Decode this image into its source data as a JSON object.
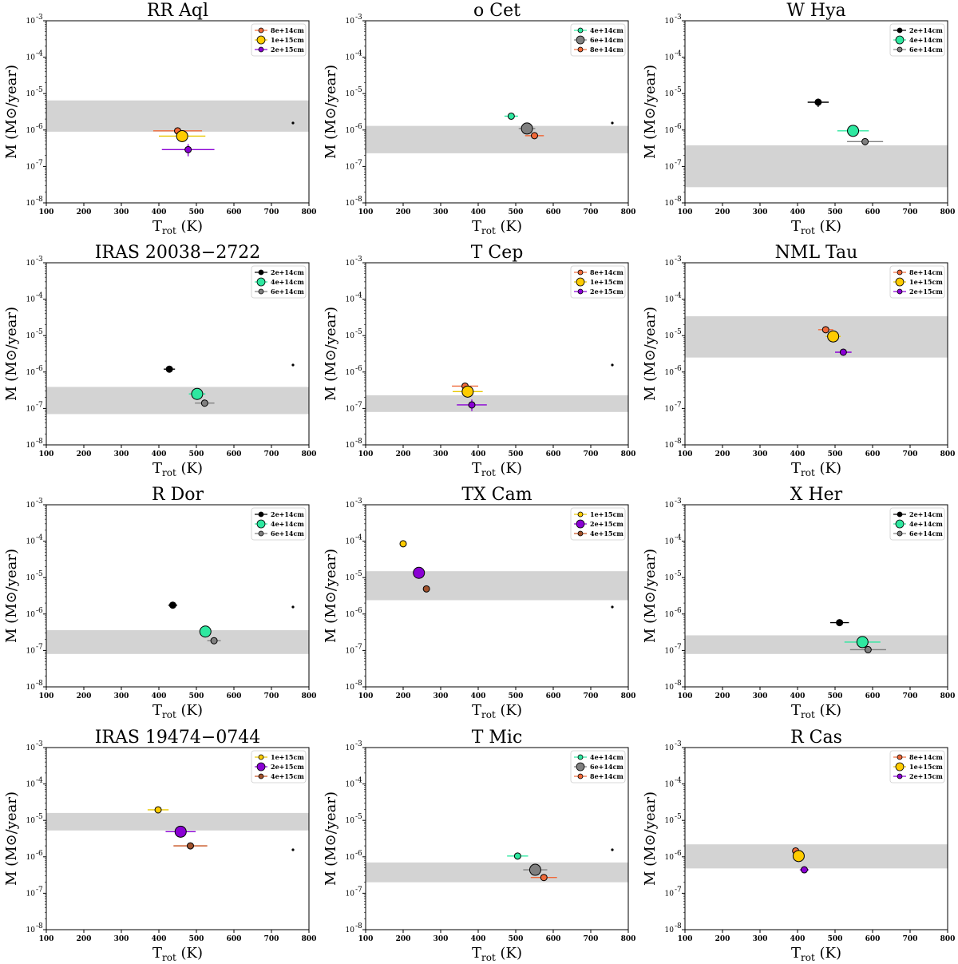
{
  "styles": {
    "band_color": "#d3d3d3",
    "series_colors": {
      "2e+14cm": "#000000",
      "4e+14cm": "#2ee8a0",
      "6e+14cm": "#808080",
      "8e+14cm": "#f06a3a",
      "1e+15cm": "#ffcc00",
      "2e+15cm": "#8a00d4",
      "4e+15cm": "#a0522d"
    },
    "errorbar_colors": {
      "2e+14cm": "#000000",
      "4e+14cm": "#2ee8a0",
      "6e+14cm": "#808080",
      "8e+14cm": "#f06a3a",
      "1e+15cm": "#e8c800",
      "2e+15cm": "#8a00d4",
      "4e+15cm": "#c8501e"
    }
  },
  "chart_data": [
    {
      "type": "scatter",
      "title": "RR Aql",
      "xlabel_main": "T",
      "xlabel_sub": "rot",
      "xlabel_unit": " (K)",
      "ylabel_pre": "M",
      "ylabel_post": " (M",
      "ylabel_sym": "⊙",
      "ylabel_end": "/year)",
      "xlim": [
        100,
        800
      ],
      "ylim": [
        1e-08,
        0.001
      ],
      "log_y": true,
      "xticks": [
        "100",
        "200",
        "300",
        "400",
        "500",
        "600",
        "700",
        "800"
      ],
      "yticks": [
        "10",
        "10",
        "10",
        "10",
        "10",
        "10"
      ],
      "ytick_exps": [
        "-8",
        "-7",
        "-6",
        "-5",
        "-4",
        "-3"
      ],
      "band": [
        9e-07,
        6.5e-06
      ],
      "legend_position": "top-right",
      "series": [
        {
          "name": "8e+14cm",
          "x": 450,
          "y": 9.5e-07,
          "xerr": [
            65,
            65
          ],
          "yerr": [
            0,
            0
          ],
          "size": 4
        },
        {
          "name": "1e+15cm",
          "x": 462,
          "y": 6.8e-07,
          "xerr": [
            62,
            62
          ],
          "yerr": [
            0,
            0
          ],
          "size": 7
        },
        {
          "name": "2e+15cm",
          "x": 478,
          "y": 2.9e-07,
          "xerr": [
            70,
            70
          ],
          "yerr": [
            1e-07,
            1.2e-07
          ],
          "size": 4
        }
      ]
    },
    {
      "type": "scatter",
      "title": "o Cet",
      "xlabel_main": "T",
      "xlabel_sub": "rot",
      "xlabel_unit": " (K)",
      "ylabel_pre": "M",
      "ylabel_post": " (M",
      "ylabel_sym": "⊙",
      "ylabel_end": "/year)",
      "xlim": [
        100,
        800
      ],
      "ylim": [
        1e-08,
        0.001
      ],
      "log_y": true,
      "xticks": [
        "100",
        "200",
        "300",
        "400",
        "500",
        "600",
        "700",
        "800"
      ],
      "yticks": [
        "10",
        "10",
        "10",
        "10",
        "10",
        "10"
      ],
      "ytick_exps": [
        "-8",
        "-7",
        "-6",
        "-5",
        "-4",
        "-3"
      ],
      "band": [
        2.3e-07,
        1.3e-06
      ],
      "legend_position": "top-right",
      "series": [
        {
          "name": "4e+14cm",
          "x": 488,
          "y": 2.4e-06,
          "xerr": [
            18,
            18
          ],
          "yerr": [
            0,
            0
          ],
          "size": 4
        },
        {
          "name": "6e+14cm",
          "x": 530,
          "y": 1.1e-06,
          "xerr": [
            22,
            22
          ],
          "yerr": [
            0,
            0
          ],
          "size": 7
        },
        {
          "name": "8e+14cm",
          "x": 550,
          "y": 7e-07,
          "xerr": [
            25,
            25
          ],
          "yerr": [
            0,
            0
          ],
          "size": 4
        }
      ]
    },
    {
      "type": "scatter",
      "title": "W Hya",
      "xlabel_main": "T",
      "xlabel_sub": "rot",
      "xlabel_unit": " (K)",
      "ylabel_pre": "M",
      "ylabel_post": " (M",
      "ylabel_sym": "⊙",
      "ylabel_end": "/year)",
      "xlim": [
        100,
        800
      ],
      "ylim": [
        1e-08,
        0.001
      ],
      "log_y": true,
      "xticks": [
        "100",
        "200",
        "300",
        "400",
        "500",
        "600",
        "700",
        "800"
      ],
      "yticks": [
        "10",
        "10",
        "10",
        "10",
        "10",
        "10"
      ],
      "ytick_exps": [
        "-8",
        "-7",
        "-6",
        "-5",
        "-4",
        "-3"
      ],
      "band": [
        2.7e-08,
        3.8e-07
      ],
      "legend_position": "top-right",
      "series": [
        {
          "name": "2e+14cm",
          "x": 455,
          "y": 5.8e-06,
          "xerr": [
            28,
            28
          ],
          "yerr": [
            1.5e-06,
            1.5e-06
          ],
          "size": 4
        },
        {
          "name": "4e+14cm",
          "x": 548,
          "y": 9.5e-07,
          "xerr": [
            42,
            42
          ],
          "yerr": [
            0,
            0
          ],
          "size": 7
        },
        {
          "name": "6e+14cm",
          "x": 580,
          "y": 4.8e-07,
          "xerr": [
            48,
            48
          ],
          "yerr": [
            1e-07,
            1e-07
          ],
          "size": 4
        }
      ]
    },
    {
      "type": "scatter",
      "title": "IRAS 20038−2722",
      "xlabel_main": "T",
      "xlabel_sub": "rot",
      "xlabel_unit": " (K)",
      "ylabel_pre": "M",
      "ylabel_post": " (M",
      "ylabel_sym": "⊙",
      "ylabel_end": "/year)",
      "xlim": [
        100,
        800
      ],
      "ylim": [
        1e-08,
        0.001
      ],
      "log_y": true,
      "xticks": [
        "100",
        "200",
        "300",
        "400",
        "500",
        "600",
        "700",
        "800"
      ],
      "yticks": [
        "10",
        "10",
        "10",
        "10",
        "10",
        "10"
      ],
      "ytick_exps": [
        "-8",
        "-7",
        "-6",
        "-5",
        "-4",
        "-3"
      ],
      "band": [
        7e-08,
        3.9e-07
      ],
      "legend_position": "top-right",
      "series": [
        {
          "name": "2e+14cm",
          "x": 428,
          "y": 1.2e-06,
          "xerr": [
            15,
            15
          ],
          "yerr": [
            0,
            0
          ],
          "size": 4
        },
        {
          "name": "4e+14cm",
          "x": 502,
          "y": 2.5e-07,
          "xerr": [
            22,
            22
          ],
          "yerr": [
            0,
            0
          ],
          "size": 7
        },
        {
          "name": "6e+14cm",
          "x": 522,
          "y": 1.4e-07,
          "xerr": [
            26,
            26
          ],
          "yerr": [
            0,
            0
          ],
          "size": 4
        }
      ]
    },
    {
      "type": "scatter",
      "title": "T Cep",
      "xlabel_main": "T",
      "xlabel_sub": "rot",
      "xlabel_unit": " (K)",
      "ylabel_pre": "M",
      "ylabel_post": " (M",
      "ylabel_sym": "⊙",
      "ylabel_end": "/year)",
      "xlim": [
        100,
        800
      ],
      "ylim": [
        1e-08,
        0.001
      ],
      "log_y": true,
      "xticks": [
        "100",
        "200",
        "300",
        "400",
        "500",
        "600",
        "700",
        "800"
      ],
      "yticks": [
        "10",
        "10",
        "10",
        "10",
        "10",
        "10"
      ],
      "ytick_exps": [
        "-8",
        "-7",
        "-6",
        "-5",
        "-4",
        "-3"
      ],
      "band": [
        8e-08,
        2.3e-07
      ],
      "legend_position": "top-right",
      "series": [
        {
          "name": "8e+14cm",
          "x": 365,
          "y": 4.1e-07,
          "xerr": [
            35,
            35
          ],
          "yerr": [
            1e-07,
            1e-07
          ],
          "size": 4
        },
        {
          "name": "1e+15cm",
          "x": 372,
          "y": 2.9e-07,
          "xerr": [
            40,
            40
          ],
          "yerr": [
            0,
            0
          ],
          "size": 7
        },
        {
          "name": "2e+15cm",
          "x": 383,
          "y": 1.25e-07,
          "xerr": [
            40,
            40
          ],
          "yerr": [
            4e-08,
            5e-08
          ],
          "size": 4
        }
      ]
    },
    {
      "type": "scatter",
      "title": "NML Tau",
      "xlabel_main": "T",
      "xlabel_sub": "rot",
      "xlabel_unit": " (K)",
      "ylabel_pre": "M",
      "ylabel_post": " (M",
      "ylabel_sym": "⊙",
      "ylabel_end": "/year)",
      "xlim": [
        100,
        800
      ],
      "ylim": [
        1e-08,
        0.001
      ],
      "log_y": true,
      "xticks": [
        "100",
        "200",
        "300",
        "400",
        "500",
        "600",
        "700",
        "800"
      ],
      "yticks": [
        "10",
        "10",
        "10",
        "10",
        "10",
        "10"
      ],
      "ytick_exps": [
        "-8",
        "-7",
        "-6",
        "-5",
        "-4",
        "-3"
      ],
      "band": [
        2.5e-06,
        3.4e-05
      ],
      "legend_position": "top-right",
      "series": [
        {
          "name": "8e+14cm",
          "x": 475,
          "y": 1.45e-05,
          "xerr": [
            20,
            20
          ],
          "yerr": [
            0,
            0
          ],
          "size": 4
        },
        {
          "name": "1e+15cm",
          "x": 495,
          "y": 9.5e-06,
          "xerr": [
            20,
            20
          ],
          "yerr": [
            0,
            0
          ],
          "size": 7
        },
        {
          "name": "2e+15cm",
          "x": 522,
          "y": 3.5e-06,
          "xerr": [
            22,
            22
          ],
          "yerr": [
            0,
            0
          ],
          "size": 4
        }
      ]
    },
    {
      "type": "scatter",
      "title": "R Dor",
      "xlabel_main": "T",
      "xlabel_sub": "rot",
      "xlabel_unit": " (K)",
      "ylabel_pre": "M",
      "ylabel_post": " (M",
      "ylabel_sym": "⊙",
      "ylabel_end": "/year)",
      "xlim": [
        100,
        800
      ],
      "ylim": [
        1e-08,
        0.001
      ],
      "log_y": true,
      "xticks": [
        "100",
        "200",
        "300",
        "400",
        "500",
        "600",
        "700",
        "800"
      ],
      "yticks": [
        "10",
        "10",
        "10",
        "10",
        "10",
        "10"
      ],
      "ytick_exps": [
        "-8",
        "-7",
        "-6",
        "-5",
        "-4",
        "-3"
      ],
      "band": [
        8e-08,
        3.6e-07
      ],
      "legend_position": "top-right",
      "series": [
        {
          "name": "2e+14cm",
          "x": 437,
          "y": 1.75e-06,
          "xerr": [
            12,
            12
          ],
          "yerr": [
            0,
            0
          ],
          "size": 4
        },
        {
          "name": "4e+14cm",
          "x": 524,
          "y": 3.3e-07,
          "xerr": [
            16,
            16
          ],
          "yerr": [
            0,
            0
          ],
          "size": 7
        },
        {
          "name": "6e+14cm",
          "x": 547,
          "y": 1.85e-07,
          "xerr": [
            18,
            18
          ],
          "yerr": [
            0,
            0
          ],
          "size": 4
        }
      ]
    },
    {
      "type": "scatter",
      "title": "TX Cam",
      "xlabel_main": "T",
      "xlabel_sub": "rot",
      "xlabel_unit": " (K)",
      "ylabel_pre": "M",
      "ylabel_post": " (M",
      "ylabel_sym": "⊙",
      "ylabel_end": "/year)",
      "xlim": [
        100,
        800
      ],
      "ylim": [
        1e-08,
        0.001
      ],
      "log_y": true,
      "xticks": [
        "100",
        "200",
        "300",
        "400",
        "500",
        "600",
        "700",
        "800"
      ],
      "yticks": [
        "10",
        "10",
        "10",
        "10",
        "10",
        "10"
      ],
      "ytick_exps": [
        "-8",
        "-7",
        "-6",
        "-5",
        "-4",
        "-3"
      ],
      "band": [
        2.4e-06,
        1.5e-05
      ],
      "legend_position": "top-right",
      "series": [
        {
          "name": "1e+15cm",
          "x": 200,
          "y": 8.5e-05,
          "xerr": [
            0,
            0
          ],
          "yerr": [
            0,
            0
          ],
          "size": 4
        },
        {
          "name": "2e+15cm",
          "x": 242,
          "y": 1.35e-05,
          "xerr": [
            0,
            0
          ],
          "yerr": [
            0,
            0
          ],
          "size": 7
        },
        {
          "name": "4e+15cm",
          "x": 262,
          "y": 4.9e-06,
          "xerr": [
            8,
            8
          ],
          "yerr": [
            0,
            0
          ],
          "size": 4
        }
      ]
    },
    {
      "type": "scatter",
      "title": "X Her",
      "xlabel_main": "T",
      "xlabel_sub": "rot",
      "xlabel_unit": " (K)",
      "ylabel_pre": "M",
      "ylabel_post": " (M",
      "ylabel_sym": "⊙",
      "ylabel_end": "/year)",
      "xlim": [
        100,
        800
      ],
      "ylim": [
        1e-08,
        0.001
      ],
      "log_y": true,
      "xticks": [
        "100",
        "200",
        "300",
        "400",
        "500",
        "600",
        "700",
        "800"
      ],
      "yticks": [
        "10",
        "10",
        "10",
        "10",
        "10",
        "10"
      ],
      "ytick_exps": [
        "-8",
        "-7",
        "-6",
        "-5",
        "-4",
        "-3"
      ],
      "band": [
        8e-08,
        2.6e-07
      ],
      "legend_position": "top-right",
      "series": [
        {
          "name": "2e+14cm",
          "x": 512,
          "y": 5.8e-07,
          "xerr": [
            25,
            25
          ],
          "yerr": [
            0,
            0
          ],
          "size": 4
        },
        {
          "name": "4e+14cm",
          "x": 573,
          "y": 1.7e-07,
          "xerr": [
            48,
            48
          ],
          "yerr": [
            0,
            0
          ],
          "size": 7
        },
        {
          "name": "6e+14cm",
          "x": 588,
          "y": 1.05e-07,
          "xerr": [
            48,
            48
          ],
          "yerr": [
            0,
            0
          ],
          "size": 4
        }
      ]
    },
    {
      "type": "scatter",
      "title": "IRAS 19474−0744",
      "xlabel_main": "T",
      "xlabel_sub": "rot",
      "xlabel_unit": " (K)",
      "ylabel_pre": "M",
      "ylabel_post": " (M",
      "ylabel_sym": "⊙",
      "ylabel_end": "/year)",
      "xlim": [
        100,
        800
      ],
      "ylim": [
        1e-08,
        0.001
      ],
      "log_y": true,
      "xticks": [
        "100",
        "200",
        "300",
        "400",
        "500",
        "600",
        "700",
        "800"
      ],
      "yticks": [
        "10",
        "10",
        "10",
        "10",
        "10",
        "10"
      ],
      "ytick_exps": [
        "-8",
        "-7",
        "-6",
        "-5",
        "-4",
        "-3"
      ],
      "band": [
        5.3e-06,
        1.6e-05
      ],
      "legend_position": "top-right",
      "series": [
        {
          "name": "1e+15cm",
          "x": 398,
          "y": 1.95e-05,
          "xerr": [
            28,
            28
          ],
          "yerr": [
            0,
            0
          ],
          "size": 4
        },
        {
          "name": "2e+15cm",
          "x": 458,
          "y": 4.9e-06,
          "xerr": [
            40,
            40
          ],
          "yerr": [
            0,
            0
          ],
          "size": 7
        },
        {
          "name": "4e+15cm",
          "x": 484,
          "y": 2e-06,
          "xerr": [
            45,
            45
          ],
          "yerr": [
            0,
            0
          ],
          "size": 4
        }
      ]
    },
    {
      "type": "scatter",
      "title": "T Mic",
      "xlabel_main": "T",
      "xlabel_sub": "rot",
      "xlabel_unit": " (K)",
      "ylabel_pre": "M",
      "ylabel_post": " (M",
      "ylabel_sym": "⊙",
      "ylabel_end": "/year)",
      "xlim": [
        100,
        800
      ],
      "ylim": [
        1e-08,
        0.001
      ],
      "log_y": true,
      "xticks": [
        "100",
        "200",
        "300",
        "400",
        "500",
        "600",
        "700",
        "800"
      ],
      "yticks": [
        "10",
        "10",
        "10",
        "10",
        "10",
        "10"
      ],
      "ytick_exps": [
        "-8",
        "-7",
        "-6",
        "-5",
        "-4",
        "-3"
      ],
      "band": [
        2e-07,
        7e-07
      ],
      "legend_position": "top-right",
      "series": [
        {
          "name": "4e+14cm",
          "x": 505,
          "y": 1.05e-06,
          "xerr": [
            28,
            28
          ],
          "yerr": [
            0,
            0
          ],
          "size": 4
        },
        {
          "name": "6e+14cm",
          "x": 552,
          "y": 4.4e-07,
          "xerr": [
            32,
            32
          ],
          "yerr": [
            0,
            0
          ],
          "size": 7
        },
        {
          "name": "8e+14cm",
          "x": 575,
          "y": 2.7e-07,
          "xerr": [
            35,
            35
          ],
          "yerr": [
            0,
            0
          ],
          "size": 4
        }
      ]
    },
    {
      "type": "scatter",
      "title": "R Cas",
      "xlabel_main": "T",
      "xlabel_sub": "rot",
      "xlabel_unit": " (K)",
      "ylabel_pre": "M",
      "ylabel_post": " (M",
      "ylabel_sym": "⊙",
      "ylabel_end": "/year)",
      "xlim": [
        100,
        800
      ],
      "ylim": [
        1e-08,
        0.001
      ],
      "log_y": true,
      "xticks": [
        "100",
        "200",
        "300",
        "400",
        "500",
        "600",
        "700",
        "800"
      ],
      "yticks": [
        "10",
        "10",
        "10",
        "10",
        "10",
        "10"
      ],
      "ytick_exps": [
        "-8",
        "-7",
        "-6",
        "-5",
        "-4",
        "-3"
      ],
      "band": [
        4.8e-07,
        2.2e-06
      ],
      "legend_position": "top-right",
      "series": [
        {
          "name": "8e+14cm",
          "x": 395,
          "y": 1.45e-06,
          "xerr": [
            0,
            0
          ],
          "yerr": [
            0,
            0
          ],
          "size": 4
        },
        {
          "name": "1e+15cm",
          "x": 403,
          "y": 1.05e-06,
          "xerr": [
            8,
            8
          ],
          "yerr": [
            0,
            0
          ],
          "size": 7
        },
        {
          "name": "2e+15cm",
          "x": 418,
          "y": 4.4e-07,
          "xerr": [
            12,
            12
          ],
          "yerr": [
            0,
            0
          ],
          "size": 4
        }
      ]
    }
  ]
}
